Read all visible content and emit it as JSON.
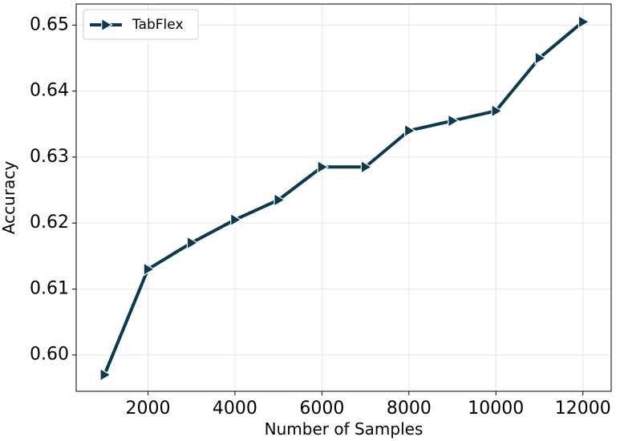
{
  "chart_data": {
    "type": "line",
    "xlabel": "Number of Samples",
    "ylabel": "Accuracy",
    "xlim": [
      350,
      12650
    ],
    "ylim": [
      0.5945,
      0.6532
    ],
    "xticks": [
      2000,
      4000,
      6000,
      8000,
      10000,
      12000
    ],
    "xtick_labels": [
      "2000",
      "4000",
      "6000",
      "8000",
      "10000",
      "12000"
    ],
    "yticks": [
      0.6,
      0.61,
      0.62,
      0.63,
      0.64,
      0.65
    ],
    "ytick_labels": [
      "0.60",
      "0.61",
      "0.62",
      "0.63",
      "0.64",
      "0.65"
    ],
    "grid": true,
    "legend_position": "top-left",
    "series": [
      {
        "name": "TabFlex",
        "color": "#0b3a4f",
        "marker": "triangle-right",
        "x": [
          1000,
          2000,
          3000,
          4000,
          5000,
          6000,
          7000,
          8000,
          9000,
          10000,
          11000,
          12000
        ],
        "y": [
          0.597,
          0.613,
          0.617,
          0.6205,
          0.6235,
          0.6285,
          0.6285,
          0.634,
          0.6355,
          0.637,
          0.645,
          0.6505
        ]
      }
    ]
  }
}
